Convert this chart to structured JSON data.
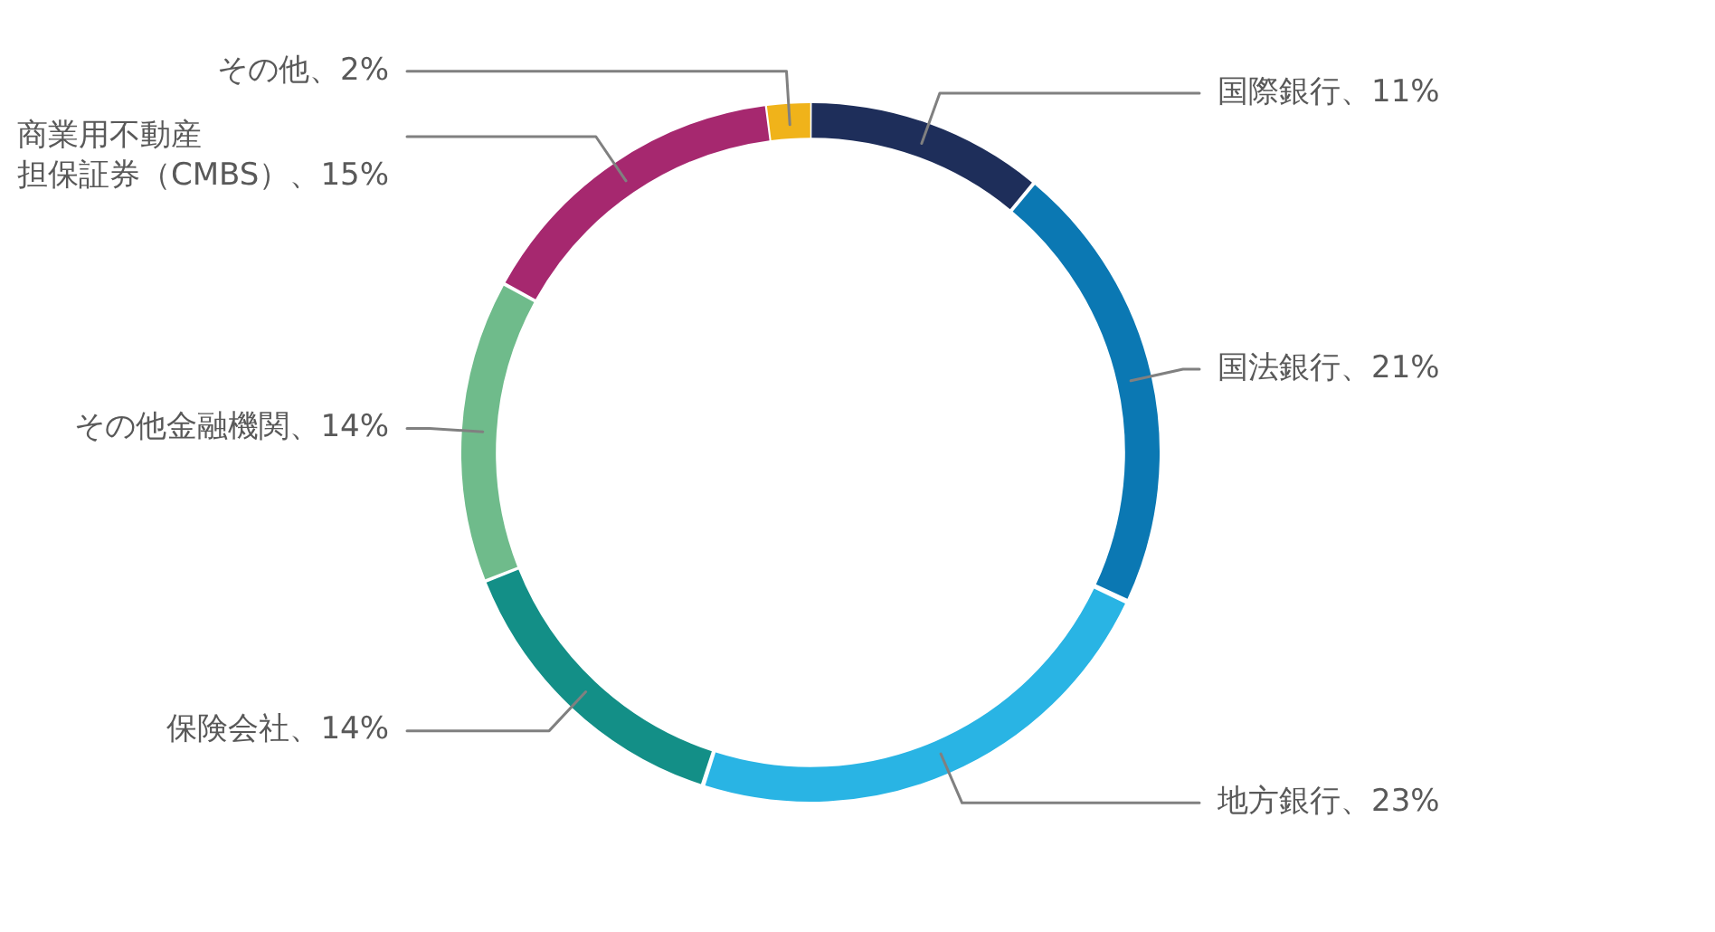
{
  "chart_data": {
    "type": "donut",
    "categories": [
      "国際銀行、11%",
      "国法銀行、21%",
      "地方銀行、23%",
      "保険会社、14%",
      "その他金融機関、14%",
      "商業用不動産担保証券（CMBS）、15%",
      "その他、2%"
    ],
    "values": [
      11,
      21,
      23,
      14,
      14,
      15,
      2
    ],
    "colors": [
      "#1e2e5a",
      "#0b78b3",
      "#29b4e4",
      "#138f87",
      "#6fbb8b",
      "#a6286f",
      "#f0b31a"
    ]
  }
}
